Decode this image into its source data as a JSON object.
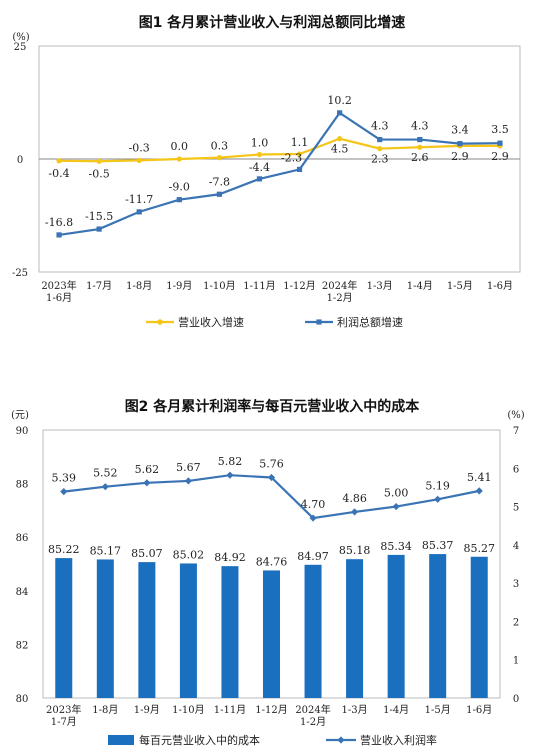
{
  "chart_data": [
    {
      "type": "line",
      "title": "图1  各月累计营业收入与利润总额同比增速",
      "y_unit": "(%)",
      "ylim": [
        -25,
        25
      ],
      "yticks": [
        "25",
        "0",
        "-25"
      ],
      "categories": [
        "2023年\n1-6月",
        "1-7月",
        "1-8月",
        "1-9月",
        "1-10月",
        "1-11月",
        "1-12月",
        "2024年\n1-2月",
        "1-3月",
        "1-4月",
        "1-5月",
        "1-6月"
      ],
      "series": [
        {
          "name": "营业收入增速",
          "color": "#f5c518",
          "values": [
            -0.4,
            -0.5,
            -0.3,
            0.0,
            0.3,
            1.0,
            1.1,
            4.5,
            2.3,
            2.6,
            2.9,
            2.9
          ],
          "labels": [
            "-0.4",
            "-0.5",
            "-0.3",
            "0.0",
            "0.3",
            "1.0",
            "1.1",
            "4.5",
            "2.3",
            "2.6",
            "2.9",
            "2.9"
          ]
        },
        {
          "name": "利润总额增速",
          "color": "#3a74b4",
          "values": [
            -16.8,
            -15.5,
            -11.7,
            -9.0,
            -7.8,
            -4.4,
            -2.3,
            10.2,
            4.3,
            4.3,
            3.4,
            3.5
          ],
          "labels": [
            "-16.8",
            "-15.5",
            "-11.7",
            "-9.0",
            "-7.8",
            "-4.4",
            "-2.3",
            "10.2",
            "4.3",
            "4.3",
            "3.4",
            "3.5"
          ]
        }
      ],
      "legend_position": "bottom"
    },
    {
      "type": "bar+line",
      "title": "图2  各月累计利润率与每百元营业收入中的成本",
      "y_left_unit": "(元)",
      "y_right_unit": "(%)",
      "ylim_left": [
        80,
        90
      ],
      "ylim_right": [
        0,
        7
      ],
      "yticks_left": [
        "90",
        "88",
        "86",
        "84",
        "82",
        "80"
      ],
      "yticks_right": [
        "7",
        "6",
        "5",
        "4",
        "3",
        "2",
        "1",
        "0"
      ],
      "categories": [
        "2023年\n1-7月",
        "1-8月",
        "1-9月",
        "1-10月",
        "1-11月",
        "1-12月",
        "2024年\n1-2月",
        "1-3月",
        "1-4月",
        "1-5月",
        "1-6月"
      ],
      "series": [
        {
          "name": "每百元营业收入中的成本",
          "type": "bar",
          "axis": "left",
          "color": "#1a6fbf",
          "values": [
            85.22,
            85.17,
            85.07,
            85.02,
            84.92,
            84.76,
            84.97,
            85.18,
            85.34,
            85.37,
            85.27
          ],
          "labels": [
            "85.22",
            "85.17",
            "85.07",
            "85.02",
            "84.92",
            "84.76",
            "84.97",
            "85.18",
            "85.34",
            "85.37",
            "85.27"
          ]
        },
        {
          "name": "营业收入利润率",
          "type": "line",
          "axis": "right",
          "color": "#3a74b4",
          "values": [
            5.39,
            5.52,
            5.62,
            5.67,
            5.82,
            5.76,
            4.7,
            4.86,
            5.0,
            5.19,
            5.41
          ],
          "labels": [
            "5.39",
            "5.52",
            "5.62",
            "5.67",
            "5.82",
            "5.76",
            "4.70",
            "4.86",
            "5.00",
            "5.19",
            "5.41"
          ]
        }
      ],
      "legend_position": "bottom"
    }
  ]
}
